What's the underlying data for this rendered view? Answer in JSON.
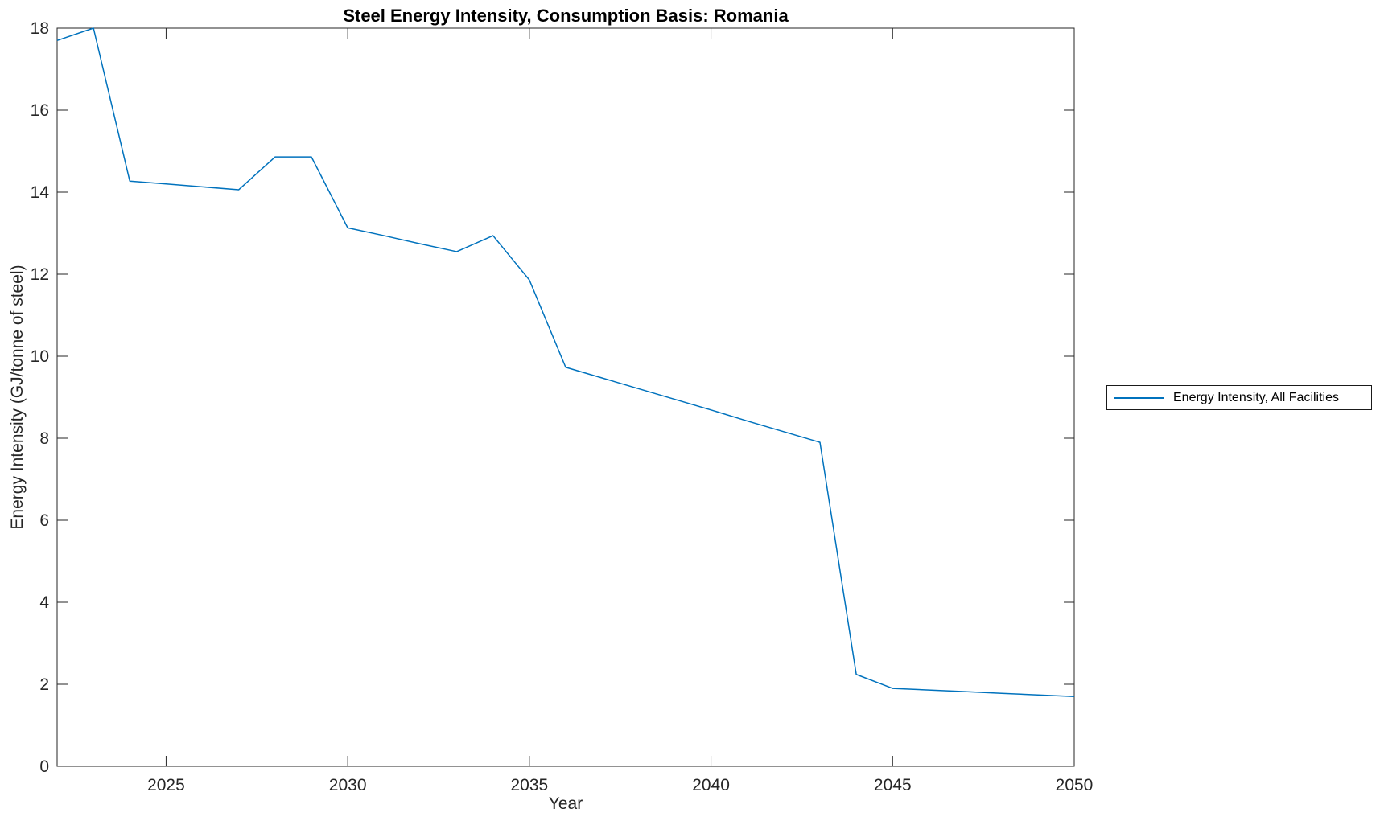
{
  "chart_data": {
    "type": "line",
    "title": "Steel Energy Intensity, Consumption Basis: Romania",
    "xlabel": "Year",
    "ylabel": "Energy Intensity (GJ/tonne of steel)",
    "xlim": [
      2022,
      2050
    ],
    "ylim": [
      0,
      18
    ],
    "xticks": [
      2025,
      2030,
      2035,
      2040,
      2045,
      2050
    ],
    "yticks": [
      0,
      2,
      4,
      6,
      8,
      10,
      12,
      14,
      16,
      18
    ],
    "grid": false,
    "legend_position": "right-outside",
    "axis_color": "#262626",
    "series": [
      {
        "name": "Energy Intensity, All Facilities",
        "color": "#0072BD",
        "x": [
          2022,
          2023,
          2024,
          2025,
          2026,
          2027,
          2028,
          2029,
          2030,
          2031,
          2032,
          2033,
          2034,
          2035,
          2036,
          2037,
          2038,
          2039,
          2040,
          2041,
          2042,
          2043,
          2044,
          2045,
          2046,
          2047,
          2048,
          2049,
          2050
        ],
        "values": [
          17.7,
          18.0,
          14.27,
          14.2,
          14.13,
          14.06,
          14.86,
          14.86,
          13.13,
          12.94,
          12.74,
          12.55,
          12.94,
          11.86,
          9.73,
          9.47,
          9.21,
          8.95,
          8.69,
          8.42,
          8.16,
          7.9,
          2.24,
          1.9,
          1.86,
          1.82,
          1.78,
          1.74,
          1.7
        ]
      }
    ]
  }
}
